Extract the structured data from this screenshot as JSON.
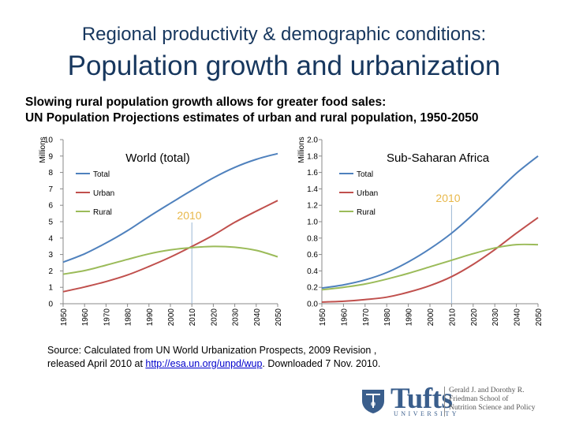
{
  "header": {
    "subtitle": "Regional productivity & demographic conditions:",
    "title": "Population growth and urbanization"
  },
  "description": {
    "line1": "Slowing rural population growth allows for greater food sales:",
    "line2": "UN Population Projections estimates of urban and rural population, 1950-2050"
  },
  "source": {
    "line1": "Source: Calculated  from UN World Urbanization Prospects, 2009 Revision ,",
    "line2_prefix": "released April 2010 at ",
    "link": "http://esa.un.org/unpd/wup",
    "line2_suffix": ".  Downloaded 7 Nov. 2010."
  },
  "logo": {
    "name": "Tufts",
    "university": "UNIVERSITY",
    "school_line1": "Gerald J. and Dorothy R.",
    "school_line2": "Friedman School of",
    "school_line3": "Nutrition Science and Policy"
  },
  "colors": {
    "total": "#4f81bd",
    "urban": "#c0504d",
    "rural": "#9bbb59",
    "marker": "#9bb7d4",
    "marker_label": "#e8b84a"
  },
  "chart_data": [
    {
      "type": "line",
      "title": "World (total)",
      "ylabel": "Millions",
      "ylim": [
        0,
        10
      ],
      "yticks": [
        "0",
        "1",
        "2",
        "3",
        "4",
        "5",
        "6",
        "7",
        "8",
        "9",
        "10"
      ],
      "x": [
        1950,
        1960,
        1970,
        1980,
        1990,
        2000,
        2010,
        2020,
        2030,
        2040,
        2050
      ],
      "xticks": [
        "1950",
        "1960",
        "1970",
        "1980",
        "1990",
        "2000",
        "2010",
        "2020",
        "2030",
        "2040",
        "2050"
      ],
      "marker_year": 2010,
      "marker_label": "2010",
      "series": [
        {
          "name": "Total",
          "values": [
            2.53,
            3.04,
            3.7,
            4.45,
            5.31,
            6.12,
            6.91,
            7.67,
            8.31,
            8.8,
            9.15
          ]
        },
        {
          "name": "Urban",
          "values": [
            0.73,
            1.02,
            1.35,
            1.75,
            2.27,
            2.84,
            3.49,
            4.18,
            4.96,
            5.64,
            6.29
          ]
        },
        {
          "name": "Rural",
          "values": [
            1.8,
            2.02,
            2.35,
            2.7,
            3.04,
            3.28,
            3.42,
            3.49,
            3.44,
            3.25,
            2.86
          ]
        }
      ]
    },
    {
      "type": "line",
      "title": "Sub-Saharan Africa",
      "ylabel": "Millions",
      "ylim": [
        0.0,
        2.0
      ],
      "yticks": [
        "0.0",
        "0.2",
        "0.4",
        "0.6",
        "0.8",
        "1.0",
        "1.2",
        "1.4",
        "1.6",
        "1.8",
        "2.0"
      ],
      "x": [
        1950,
        1960,
        1970,
        1980,
        1990,
        2000,
        2010,
        2020,
        2030,
        2040,
        2050
      ],
      "xticks": [
        "1950",
        "1960",
        "1970",
        "1980",
        "1990",
        "2000",
        "2010",
        "2020",
        "2030",
        "2040",
        "2050"
      ],
      "marker_year": 2010,
      "marker_label": "2010",
      "series": [
        {
          "name": "Total",
          "values": [
            0.19,
            0.23,
            0.29,
            0.38,
            0.51,
            0.67,
            0.86,
            1.09,
            1.34,
            1.59,
            1.8
          ]
        },
        {
          "name": "Urban",
          "values": [
            0.02,
            0.03,
            0.05,
            0.08,
            0.14,
            0.22,
            0.33,
            0.48,
            0.66,
            0.86,
            1.05
          ]
        },
        {
          "name": "Rural",
          "values": [
            0.17,
            0.2,
            0.24,
            0.3,
            0.37,
            0.45,
            0.53,
            0.61,
            0.68,
            0.72,
            0.72
          ]
        }
      ]
    }
  ]
}
